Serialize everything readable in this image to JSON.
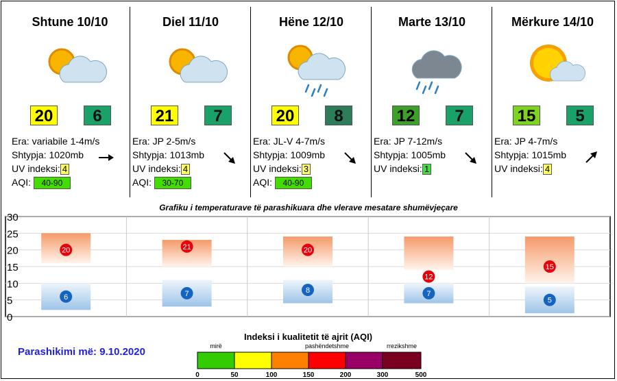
{
  "days": [
    {
      "title": "Shtune 10/10",
      "icon": "partly-cloudy-icon",
      "tmax": "20",
      "tmin": "6",
      "tmax_color": "#ffff00",
      "tmin_color": "#1aa16a",
      "wind": "Era: variabile 1-4m/s",
      "pressure": "Shtypja: 1020mb",
      "uv_label": "UV indeksi:",
      "uv": "4",
      "uv_color": "#ffff66",
      "aqi_label": "AQI:",
      "aqi": "40-90",
      "aqi_color": "#44dd00",
      "trend": "steady-arrow-icon"
    },
    {
      "title": "Diel 11/10",
      "icon": "partly-cloudy-icon",
      "tmax": "21",
      "tmin": "7",
      "tmax_color": "#ffff00",
      "tmin_color": "#1aa16a",
      "wind": "Era: JP 2-5m/s",
      "pressure": "Shtypja: 1013mb",
      "uv_label": "UV indeksi:",
      "uv": "4",
      "uv_color": "#ffff66",
      "aqi_label": "AQI:",
      "aqi": "30-70",
      "aqi_color": "#44dd00",
      "trend": "falling-arrow-icon"
    },
    {
      "title": "Hëne 12/10",
      "icon": "partly-cloudy-rain-icon",
      "tmax": "20",
      "tmin": "8",
      "tmax_color": "#ffff00",
      "tmin_color": "#2e7d5a",
      "wind": "Era: JL-V 4-7m/s",
      "pressure": "Shtypja: 1009mb",
      "uv_label": "UV indeksi:",
      "uv": "3",
      "uv_color": "#ffff66",
      "aqi_label": "AQI:",
      "aqi": "40-90",
      "aqi_color": "#44dd00",
      "trend": "falling-arrow-icon"
    },
    {
      "title": "Marte 13/10",
      "icon": "rain-cloud-icon",
      "tmax": "12",
      "tmin": "7",
      "tmax_color": "#3da02a",
      "tmin_color": "#1aa16a",
      "wind": "Era: JP 7-12m/s",
      "pressure": "Shtypja: 1005mb",
      "uv_label": "UV indeksi:",
      "uv": "1",
      "uv_color": "#44dd44",
      "aqi_label": "",
      "aqi": "",
      "aqi_color": "",
      "trend": "falling-arrow-icon"
    },
    {
      "title": "Mërkure 14/10",
      "icon": "sunny-cloud-icon",
      "tmax": "15",
      "tmin": "5",
      "tmax_color": "#7ed321",
      "tmin_color": "#1aa16a",
      "wind": "Era: JP 4-7m/s",
      "pressure": "Shtypja: 1015mb",
      "uv_label": "UV indeksi:",
      "uv": "4",
      "uv_color": "#ffff66",
      "aqi_label": "",
      "aqi": "",
      "aqi_color": "",
      "trend": "rising-arrow-icon"
    }
  ],
  "chart_data": {
    "type": "bar",
    "title": "Grafiku i temperaturave të parashikuara dhe vlerave mesatare shumëvjeçare",
    "categories": [
      "Shtune 10/10",
      "Diel 11/10",
      "Hëne 12/10",
      "Marte 13/10",
      "Mërkure 14/10"
    ],
    "ylim": [
      0,
      30
    ],
    "yticks": [
      0,
      5,
      10,
      15,
      20,
      25,
      30
    ],
    "series": [
      {
        "values": [
          20,
          21,
          20,
          12,
          15
        ]
      },
      {
        "values": [
          6,
          7,
          8,
          7,
          5
        ]
      }
    ],
    "max_range": [
      [
        16,
        25
      ],
      [
        15,
        23
      ],
      [
        15,
        24
      ],
      [
        14,
        24
      ],
      [
        10,
        24
      ]
    ],
    "min_range": [
      [
        2,
        10
      ],
      [
        3,
        11
      ],
      [
        4,
        11
      ],
      [
        4,
        10
      ],
      [
        1,
        9
      ]
    ],
    "grid": true
  },
  "forecast_label": "Parashikimi më: 9.10.2020",
  "aqi_scale": {
    "title": "Indeksi i kualitetit të ajrit (AQI)",
    "labels": [
      {
        "text": "mirë",
        "at": 0
      },
      {
        "text": "pashëndetshme",
        "at": 3
      },
      {
        "text": "rrezikshme",
        "at": 5
      }
    ],
    "colors": [
      "#33cc00",
      "#ffff00",
      "#ff8000",
      "#ff0000",
      "#990066",
      "#7a0020"
    ],
    "ticks": [
      "0",
      "50",
      "100",
      "150",
      "200",
      "300",
      "500"
    ]
  }
}
